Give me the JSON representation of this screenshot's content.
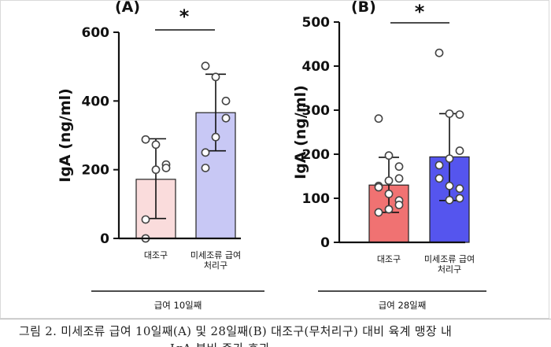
{
  "chart_data": [
    {
      "type": "bar",
      "panel_label": "(A)",
      "ylabel": "IgA (ng/ml)",
      "ylim": [
        0,
        600
      ],
      "yticks": [
        0,
        200,
        400,
        600
      ],
      "categories": [
        "대조구",
        "미세조류 급여\n처리구"
      ],
      "values": [
        172,
        366
      ],
      "error": [
        [
          58,
          290
        ],
        [
          255,
          478
        ]
      ],
      "colors": [
        "#fadcdc",
        "#c8c8f5"
      ],
      "points": [
        [
          288,
          273,
          215,
          205,
          200,
          55,
          0
        ],
        [
          502,
          470,
          400,
          350,
          295,
          250,
          205
        ]
      ],
      "significance": "*",
      "group_label": "급여 10일째"
    },
    {
      "type": "bar",
      "panel_label": "(B)",
      "ylabel": "IgA (ng/ml)",
      "ylim": [
        0,
        500
      ],
      "yticks": [
        0,
        100,
        200,
        300,
        400,
        500
      ],
      "categories": [
        "대조구",
        "미세조류 급여\n처리구"
      ],
      "values": [
        130,
        194
      ],
      "error": [
        [
          68,
          193
        ],
        [
          95,
          292
        ]
      ],
      "colors": [
        "#f07272",
        "#5555ee"
      ],
      "points": [
        [
          281,
          197,
          172,
          145,
          140,
          128,
          125,
          110,
          95,
          85,
          75,
          68
        ],
        [
          430,
          292,
          290,
          208,
          190,
          175,
          145,
          128,
          122,
          100,
          96
        ]
      ],
      "significance": "*",
      "group_label": "급여 28일째"
    }
  ],
  "caption": {
    "text": "그림 2. 미세조류 급여 10일째(A) 및 28일째(B) 대조구(무처리구) 대비 육계 맹장 내",
    "text_2": "IgA 분비 증가 효과"
  }
}
